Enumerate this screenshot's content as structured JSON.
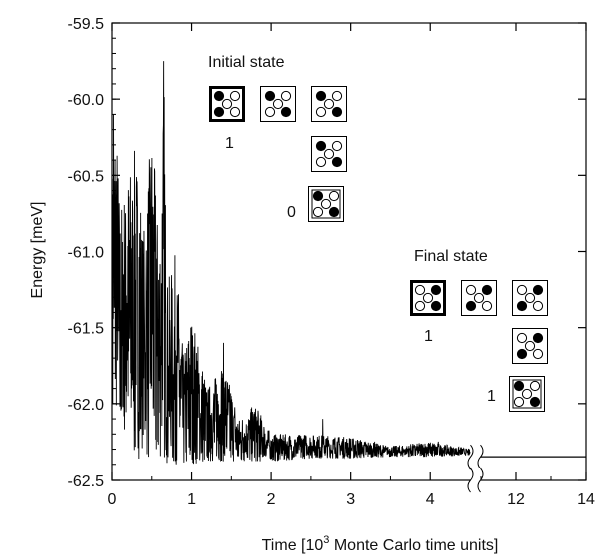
{
  "chart_data": {
    "type": "line",
    "xlabel": {
      "pre": "Time [10",
      "sup": "3",
      "post": " Monte Carlo time units]"
    },
    "ylabel": "Energy [meV]",
    "xlim_left": [
      0,
      4.5
    ],
    "xlim_right": [
      11,
      14
    ],
    "axis_break": true,
    "ylim": [
      -62.5,
      -59.5
    ],
    "x_ticks": [
      0,
      1,
      2,
      3,
      4,
      12,
      14
    ],
    "x_tick_labels": [
      "0",
      "1",
      "2",
      "3",
      "4",
      "12",
      "14"
    ],
    "y_ticks": [
      -59.5,
      -60.0,
      -60.5,
      -61.0,
      -61.5,
      -62.0,
      -62.5
    ],
    "y_tick_labels": [
      "-59.5",
      "-60.0",
      "-60.5",
      "-61.0",
      "-61.5",
      "-62.0",
      "-62.5"
    ],
    "envelope": {
      "x": [
        0,
        0.05,
        0.1,
        0.2,
        0.3,
        0.4,
        0.5,
        0.6,
        0.65,
        0.7,
        0.8,
        0.9,
        1.0,
        1.2,
        1.4,
        1.6,
        1.8,
        2.0,
        2.5,
        3.0,
        3.5,
        4.0,
        4.5
      ],
      "upper": [
        -60.3,
        -60.1,
        -60.7,
        -60.5,
        -60.3,
        -60.8,
        -60.2,
        -60.9,
        -59.75,
        -61.2,
        -61.0,
        -61.7,
        -61.4,
        -61.9,
        -61.7,
        -62.1,
        -62.0,
        -62.2,
        -62.2,
        -62.22,
        -62.28,
        -62.25,
        -62.3
      ],
      "lower": [
        -62.2,
        -62.0,
        -62.3,
        -62.1,
        -62.4,
        -62.3,
        -62.4,
        -62.35,
        -62.35,
        -62.4,
        -62.4,
        -62.4,
        -62.4,
        -62.38,
        -62.38,
        -62.38,
        -62.38,
        -62.38,
        -62.36,
        -62.36,
        -62.35,
        -62.35,
        -62.34
      ]
    },
    "spikes": [
      {
        "x": 0.02,
        "y": -60.1
      },
      {
        "x": 0.65,
        "y": -59.75
      },
      {
        "x": 1.4,
        "y": -61.6
      },
      {
        "x": 2.65,
        "y": -62.1
      },
      {
        "x": 3.3,
        "y": -62.25
      },
      {
        "x": 4.1,
        "y": -62.25
      }
    ],
    "final_level": -62.35,
    "annotations": {
      "initial_title": "Initial state",
      "final_title": "Final state",
      "initial_label_top": "1",
      "initial_label_bottom": "0",
      "final_label_top": "1",
      "final_label_bottom": "1"
    }
  }
}
